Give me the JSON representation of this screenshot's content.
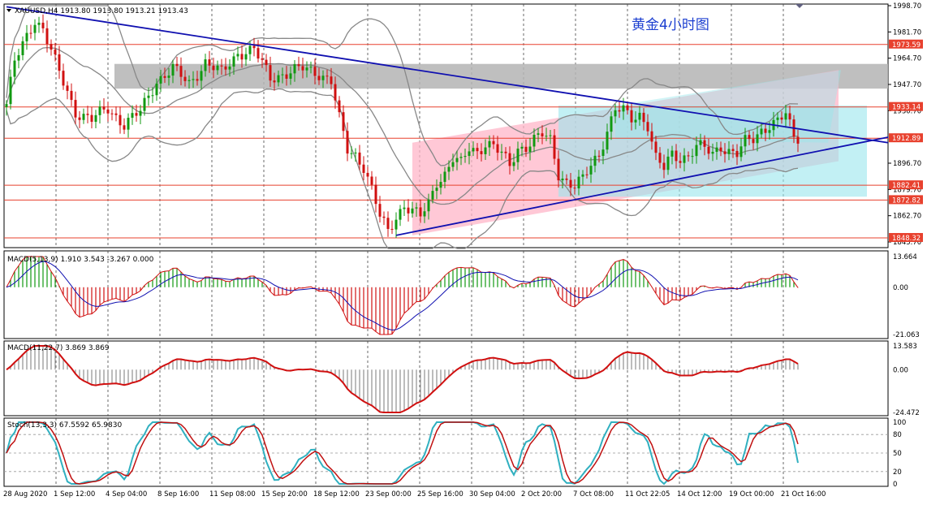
{
  "header": {
    "symbol_line": "XAUUSD,H4  1913.80 1913.80 1913.21 1913.43",
    "title": "黄金4小时图"
  },
  "colors": {
    "bull": "#119911",
    "bear": "#d01010",
    "level": "#e8412e",
    "trend": "#1010b0",
    "band": "#888888",
    "gray_zone": "#b4b4b4",
    "pink": "#ffb6c8",
    "cyan": "#99e6ec",
    "macd_main": "#1010b0",
    "macd_signal": "#d01010",
    "stoch_main": "#30b0c0",
    "stoch_signal": "#c01010",
    "hist_gray": "#909090"
  },
  "chart_data": [
    {
      "type": "candlestick",
      "name": "XAUUSD,H4",
      "price_scale": {
        "ticks": [
          "1998.70",
          "1981.70",
          "1964.70",
          "1947.70",
          "1930.70",
          "1896.70",
          "1879.70",
          "1862.70",
          "1845.70"
        ],
        "tag_levels": [
          "1973.59",
          "1933.14",
          "1912.89",
          "1882.41",
          "1872.82",
          "1848.32"
        ]
      },
      "time_labels": [
        "28 Aug 2020",
        "1 Sep 12:00",
        "4 Sep 04:00",
        "8 Sep 16:00",
        "11 Sep 08:00",
        "15 Sep 20:00",
        "18 Sep 12:00",
        "23 Sep 00:00",
        "25 Sep 16:00",
        "30 Sep 04:00",
        "2 Oct 20:00",
        "7 Oct 08:00",
        "11 Oct 22:05",
        "14 Oct 12:00",
        "19 Oct 00:00",
        "21 Oct 16:00"
      ],
      "anchors": [
        [
          0,
          1935
        ],
        [
          2,
          1962
        ],
        [
          4,
          1973
        ],
        [
          7,
          1990
        ],
        [
          9,
          1984
        ],
        [
          13,
          1955
        ],
        [
          17,
          1930
        ],
        [
          21,
          1925
        ],
        [
          25,
          1932
        ],
        [
          29,
          1922
        ],
        [
          33,
          1930
        ],
        [
          37,
          1950
        ],
        [
          41,
          1958
        ],
        [
          45,
          1948
        ],
        [
          49,
          1962
        ],
        [
          53,
          1955
        ],
        [
          57,
          1968
        ],
        [
          61,
          1970
        ],
        [
          65,
          1952
        ],
        [
          69,
          1955
        ],
        [
          73,
          1958
        ],
        [
          77,
          1955
        ],
        [
          80,
          1950
        ],
        [
          82,
          1925
        ],
        [
          84,
          1905
        ],
        [
          86,
          1902
        ],
        [
          88,
          1895
        ],
        [
          90,
          1880
        ],
        [
          92,
          1862
        ],
        [
          94,
          1852
        ],
        [
          96,
          1862
        ],
        [
          98,
          1870
        ],
        [
          100,
          1866
        ],
        [
          102,
          1862
        ],
        [
          104,
          1870
        ],
        [
          106,
          1885
        ],
        [
          108,
          1890
        ],
        [
          110,
          1900
        ],
        [
          112,
          1896
        ],
        [
          114,
          1906
        ],
        [
          116,
          1904
        ],
        [
          118,
          1910
        ],
        [
          120,
          1908
        ],
        [
          122,
          1902
        ],
        [
          124,
          1895
        ],
        [
          126,
          1906
        ],
        [
          128,
          1908
        ],
        [
          130,
          1912
        ],
        [
          132,
          1915
        ],
        [
          134,
          1911
        ],
        [
          136,
          1890
        ],
        [
          138,
          1885
        ],
        [
          140,
          1882
        ],
        [
          142,
          1886
        ],
        [
          144,
          1895
        ],
        [
          146,
          1903
        ],
        [
          148,
          1918
        ],
        [
          150,
          1932
        ],
        [
          152,
          1930
        ],
        [
          154,
          1925
        ],
        [
          156,
          1928
        ],
        [
          158,
          1922
        ],
        [
          160,
          1900
        ],
        [
          162,
          1893
        ],
        [
          164,
          1902
        ],
        [
          166,
          1900
        ],
        [
          168,
          1902
        ],
        [
          170,
          1908
        ],
        [
          172,
          1906
        ],
        [
          174,
          1902
        ],
        [
          176,
          1908
        ],
        [
          178,
          1905
        ],
        [
          180,
          1903
        ],
        [
          182,
          1910
        ],
        [
          184,
          1912
        ],
        [
          186,
          1918
        ],
        [
          188,
          1922
        ],
        [
          190,
          1924
        ],
        [
          192,
          1928
        ],
        [
          194,
          1913
        ]
      ],
      "price_levels": [
        1973.59,
        1933.14,
        1912.89,
        1882.41,
        1872.82,
        1848.32
      ],
      "gray_zone": [
        1945.0,
        1961.0
      ],
      "trend_lines": [
        {
          "x": [
            0,
            234
          ],
          "y": [
            1998.0,
            1910.0
          ]
        },
        {
          "x": [
            96,
            234
          ],
          "y": [
            1850.0,
            1913.5
          ]
        }
      ],
      "pink_channel": {
        "x": [
          100,
          205
        ],
        "y_low": [
          1850,
          1898
        ],
        "y_high": [
          1910,
          1957
        ]
      },
      "cyan_box": {
        "x": [
          136,
          212
        ],
        "y": [
          1875,
          1934
        ]
      }
    },
    {
      "type": "histogram+line",
      "name": "MACD(5,13,9) 1.910 3.543 -3.267 0.000",
      "scale_ticks": [
        "13.664",
        "0.00",
        "-21.063"
      ],
      "ylim": [
        -21.063,
        13.664
      ]
    },
    {
      "type": "histogram+line",
      "name": "MACD(11,22,7) 3.869 3.869",
      "scale_ticks": [
        "13.583",
        "0.00",
        "-24.472"
      ],
      "ylim": [
        -24.472,
        13.583
      ]
    },
    {
      "type": "line",
      "name": "Stoch(13,3,3) 67.5592 65.9830",
      "scale_ticks": [
        "100",
        "80",
        "50",
        "20",
        "0"
      ],
      "ylim": [
        0,
        100
      ]
    }
  ]
}
